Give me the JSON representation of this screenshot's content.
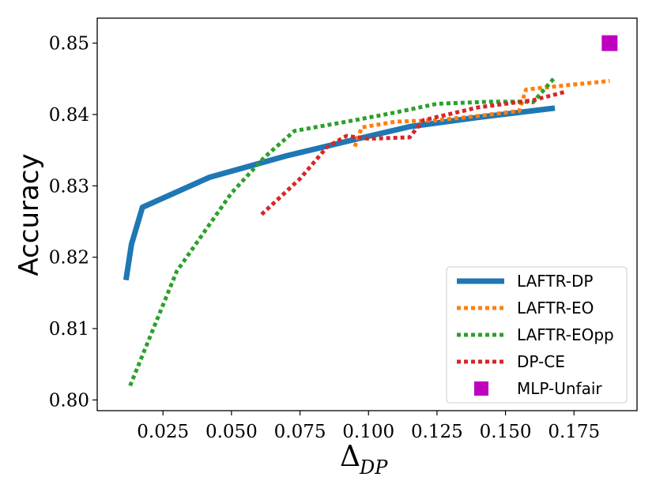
{
  "chart_data": {
    "type": "line",
    "title": "",
    "xlabel_main": "Δ",
    "xlabel_sub": "DP",
    "ylabel": "Accuracy",
    "xlim": [
      0.001,
      0.198
    ],
    "ylim": [
      0.7985,
      0.8535
    ],
    "xticks": [
      0.025,
      0.05,
      0.075,
      0.1,
      0.125,
      0.15,
      0.175
    ],
    "xtick_labels": [
      "0.025",
      "0.050",
      "0.075",
      "0.100",
      "0.125",
      "0.150",
      "0.175"
    ],
    "yticks": [
      0.8,
      0.81,
      0.82,
      0.83,
      0.84,
      0.85
    ],
    "ytick_labels": [
      "0.80",
      "0.81",
      "0.82",
      "0.83",
      "0.84",
      "0.85"
    ],
    "grid": false,
    "legend_position": "bottom-right",
    "series": [
      {
        "name": "LAFTR-DP",
        "color": "#1f77b4",
        "style": "solid",
        "points": [
          [
            0.0115,
            0.8168
          ],
          [
            0.0135,
            0.8218
          ],
          [
            0.0175,
            0.827
          ],
          [
            0.042,
            0.8312
          ],
          [
            0.07,
            0.8342
          ],
          [
            0.095,
            0.8365
          ],
          [
            0.115,
            0.8383
          ],
          [
            0.14,
            0.8396
          ],
          [
            0.168,
            0.8409
          ]
        ]
      },
      {
        "name": "LAFTR-EO",
        "color": "#ff7f0e",
        "style": "dotted",
        "points": [
          [
            0.095,
            0.8355
          ],
          [
            0.0975,
            0.8382
          ],
          [
            0.11,
            0.839
          ],
          [
            0.125,
            0.8392
          ],
          [
            0.14,
            0.8398
          ],
          [
            0.155,
            0.8405
          ],
          [
            0.1575,
            0.8435
          ],
          [
            0.17,
            0.844
          ],
          [
            0.188,
            0.8447
          ]
        ]
      },
      {
        "name": "LAFTR-EOpp",
        "color": "#2ca02c",
        "style": "dotted",
        "points": [
          [
            0.013,
            0.802
          ],
          [
            0.03,
            0.818
          ],
          [
            0.05,
            0.829
          ],
          [
            0.062,
            0.834
          ],
          [
            0.073,
            0.8377
          ],
          [
            0.095,
            0.8392
          ],
          [
            0.11,
            0.8403
          ],
          [
            0.125,
            0.8415
          ],
          [
            0.145,
            0.8418
          ],
          [
            0.157,
            0.8418
          ],
          [
            0.16,
            0.8417
          ],
          [
            0.168,
            0.8452
          ]
        ]
      },
      {
        "name": "DP-CE",
        "color": "#d62728",
        "style": "dotted",
        "points": [
          [
            0.061,
            0.826
          ],
          [
            0.075,
            0.831
          ],
          [
            0.085,
            0.8355
          ],
          [
            0.092,
            0.837
          ],
          [
            0.1,
            0.8366
          ],
          [
            0.115,
            0.8368
          ],
          [
            0.12,
            0.8392
          ],
          [
            0.14,
            0.841
          ],
          [
            0.16,
            0.842
          ],
          [
            0.172,
            0.8432
          ]
        ]
      }
    ],
    "markers": [
      {
        "name": "MLP-Unfair",
        "color": "#bf00bf",
        "shape": "square",
        "x": 0.188,
        "y": 0.85
      }
    ]
  }
}
